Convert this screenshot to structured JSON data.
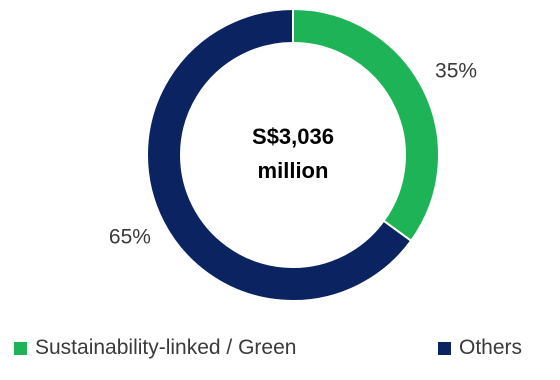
{
  "chart_data": {
    "type": "pie",
    "variant": "donut",
    "center_label": [
      "S$3,036",
      "million"
    ],
    "categories": [
      "Sustainability-linked / Green",
      "Others"
    ],
    "values": [
      35,
      65
    ],
    "value_labels": [
      "35%",
      "65%"
    ],
    "colors": [
      "#1fb358",
      "#0b2361"
    ],
    "start_angle": "12 o'clock",
    "direction": "clockwise",
    "legend": "bottom"
  }
}
